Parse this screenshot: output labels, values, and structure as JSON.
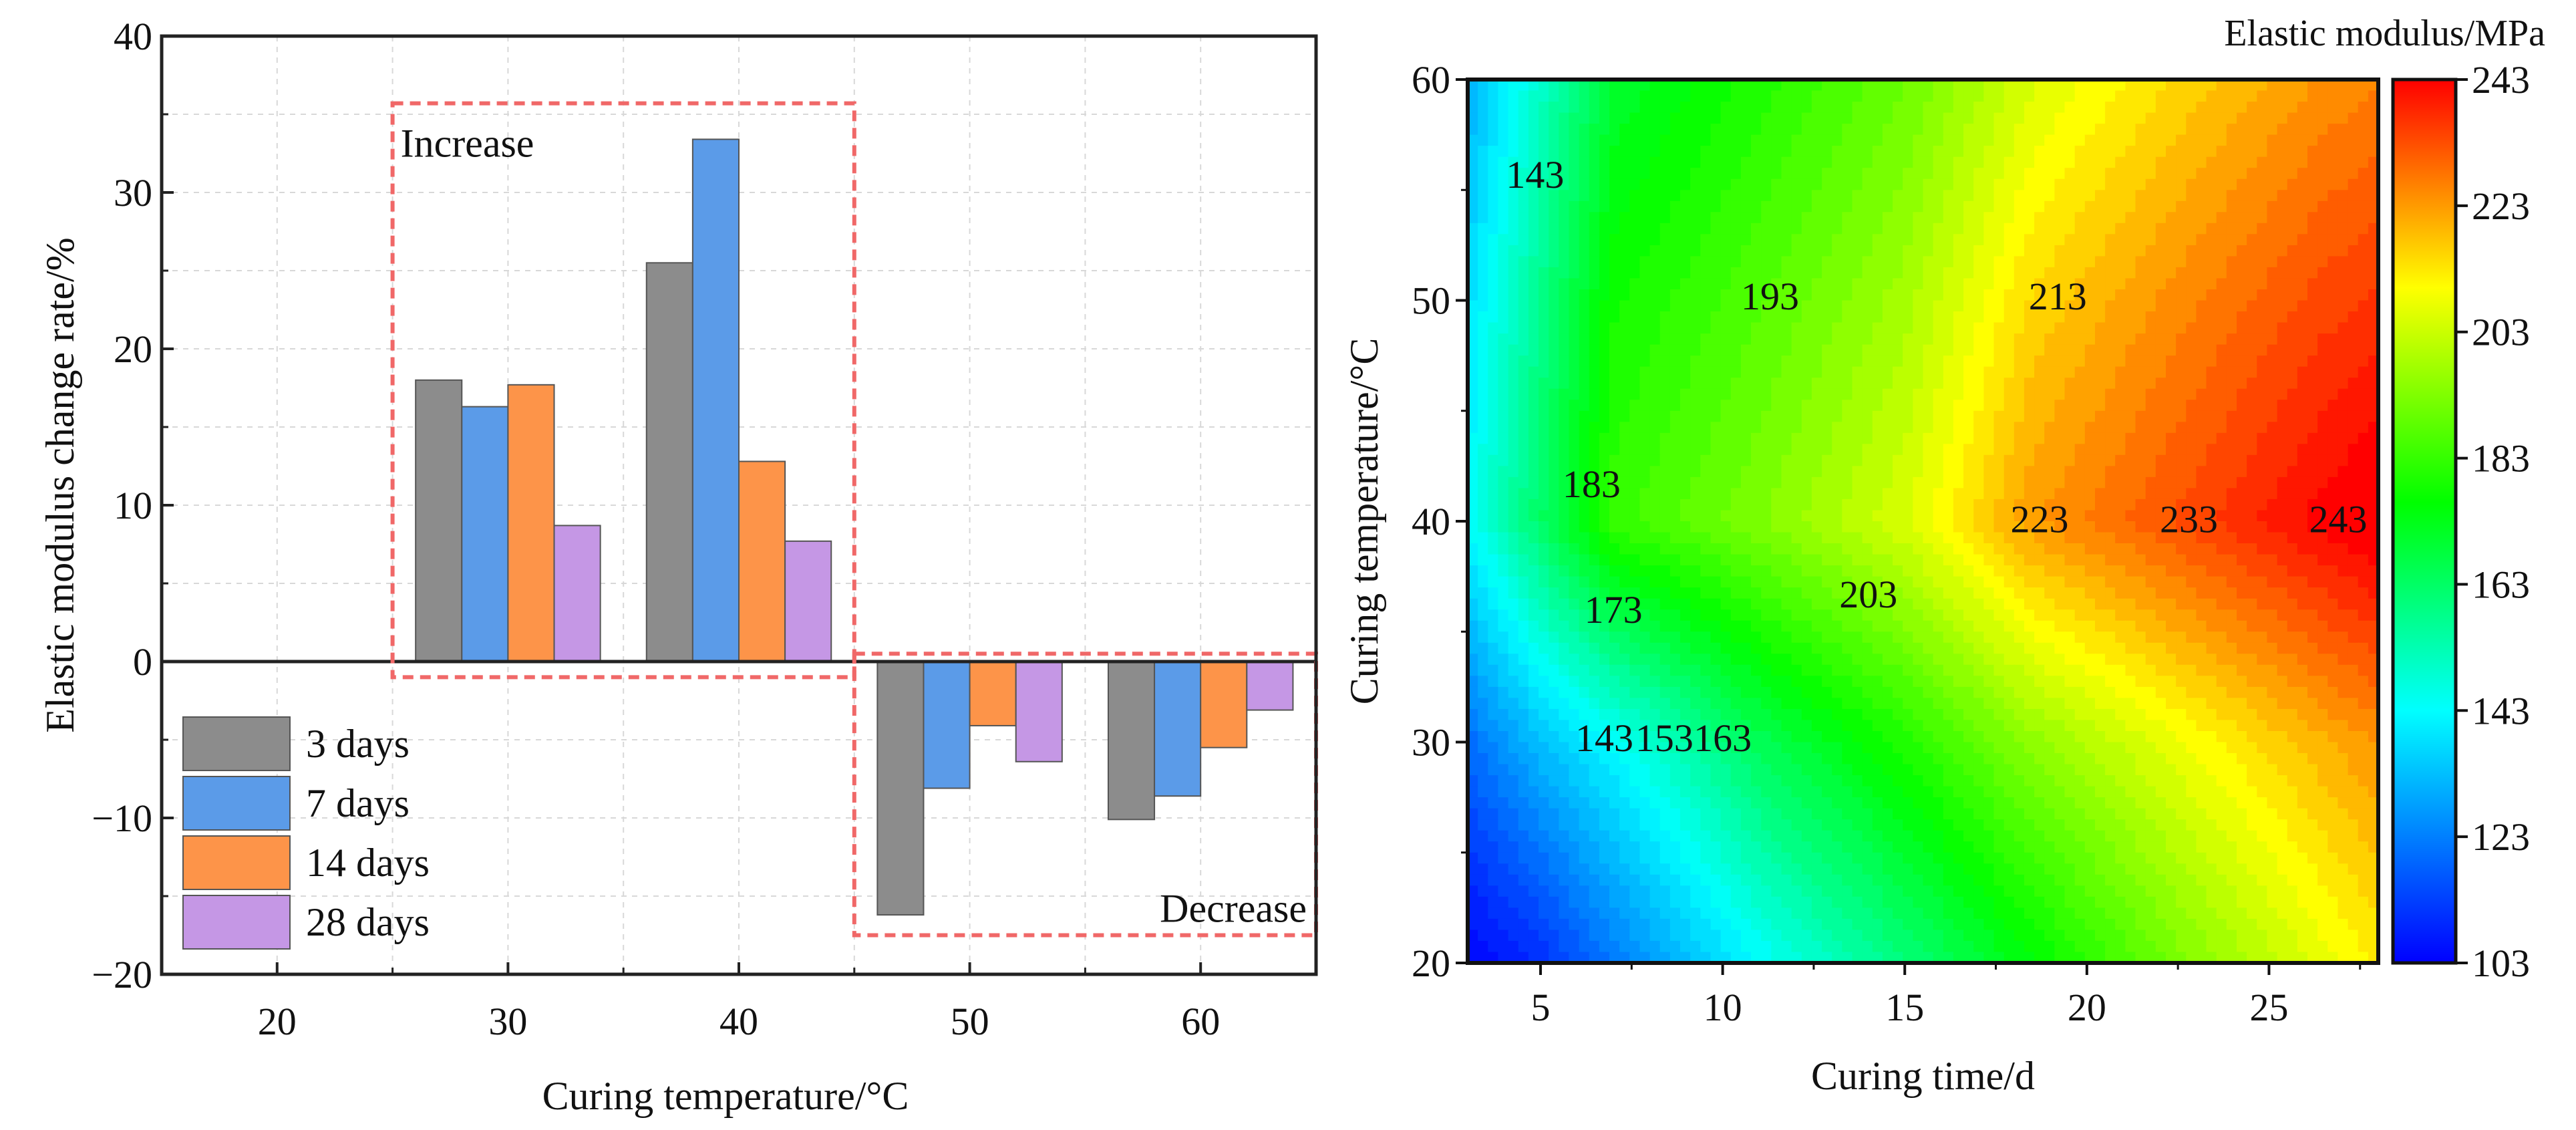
{
  "chart_data": [
    {
      "type": "bar",
      "xlabel": "Curing temperature/°C",
      "ylabel": "Elastic modulus change rate/%",
      "categories": [
        "20",
        "30",
        "40",
        "50",
        "60"
      ],
      "category_values": [
        20,
        30,
        40,
        50,
        60
      ],
      "xlim": [
        15,
        65
      ],
      "ylim": [
        -20,
        40
      ],
      "yticks": [
        -20,
        -10,
        0,
        10,
        20,
        30,
        40
      ],
      "yticks_minor": [
        -15,
        -5,
        5,
        15,
        25,
        35
      ],
      "grid": true,
      "legend_placement": "bottom-left",
      "series": [
        {
          "name": "3 days",
          "color": "#8c8c8c",
          "values": [
            0,
            18.0,
            25.5,
            -16.2,
            -10.1
          ]
        },
        {
          "name": "7 days",
          "color": "#5b9be8",
          "values": [
            0,
            16.3,
            33.4,
            -8.1,
            -8.6
          ]
        },
        {
          "name": "14 days",
          "color": "#fd9449",
          "values": [
            0,
            17.7,
            12.8,
            -4.1,
            -5.5
          ]
        },
        {
          "name": "28 days",
          "color": "#c597e5",
          "values": [
            0,
            8.7,
            7.7,
            -6.4,
            -3.1
          ]
        }
      ],
      "annotations": [
        {
          "text": "Increase",
          "box_x": [
            25,
            45
          ],
          "box_y": [
            -1,
            35.7
          ],
          "color": "#f06868"
        },
        {
          "text": "Decrease",
          "box_x": [
            45,
            65
          ],
          "box_y": [
            -17.5,
            0.5
          ],
          "color": "#f06868"
        }
      ]
    },
    {
      "type": "heatmap",
      "subtype": "contour",
      "xlabel": "Curing time/d",
      "ylabel": "Curing temperature/°C",
      "colorbar_title": "Elastic modulus/MPa",
      "xlim": [
        3,
        28
      ],
      "ylim": [
        20,
        60
      ],
      "xticks": [
        5,
        10,
        15,
        20,
        25
      ],
      "yticks": [
        20,
        30,
        40,
        50,
        60
      ],
      "colorbar_ticks": [
        103,
        123,
        143,
        163,
        183,
        203,
        223,
        243
      ],
      "zlim": [
        103,
        243
      ],
      "colormap": [
        {
          "v": 103,
          "c": "#0000ff"
        },
        {
          "v": 143,
          "c": "#00ffff"
        },
        {
          "v": 176,
          "c": "#00ff00"
        },
        {
          "v": 210,
          "c": "#ffff00"
        },
        {
          "v": 243,
          "c": "#ff0000"
        }
      ],
      "grid_t": [
        3,
        5,
        7,
        11,
        15,
        18.5,
        22.5,
        26.5,
        28
      ],
      "grid_T": [
        20,
        30,
        40,
        50,
        60
      ],
      "z": [
        [
          103,
          110,
          122,
          143,
          160,
          175,
          192,
          207,
          212
        ],
        [
          120,
          133,
          143,
          165,
          180,
          195,
          208,
          220,
          224
        ],
        [
          143,
          163,
          183,
          193,
          205,
          223,
          233,
          243,
          246
        ],
        [
          138,
          158,
          178,
          187,
          198,
          215,
          225,
          234,
          236
        ],
        [
          130,
          150,
          170,
          180,
          190,
          205,
          215,
          224,
          226
        ]
      ],
      "contour_labels": [
        {
          "text": "143",
          "t": 4.85,
          "T": 55.7
        },
        {
          "text": "193",
          "t": 11.3,
          "T": 50.2
        },
        {
          "text": "213",
          "t": 19.2,
          "T": 50.2
        },
        {
          "text": "183",
          "t": 6.4,
          "T": 41.7
        },
        {
          "text": "223",
          "t": 18.7,
          "T": 40.1
        },
        {
          "text": "233",
          "t": 22.8,
          "T": 40.1
        },
        {
          "text": "243",
          "t": 26.9,
          "T": 40.1
        },
        {
          "text": "173",
          "t": 7.0,
          "T": 36.0
        },
        {
          "text": "203",
          "t": 14.0,
          "T": 36.7
        },
        {
          "text": "143",
          "t": 6.75,
          "T": 30.2
        },
        {
          "text": "153",
          "t": 8.4,
          "T": 30.2
        },
        {
          "text": "163",
          "t": 10.0,
          "T": 30.2
        }
      ]
    }
  ]
}
